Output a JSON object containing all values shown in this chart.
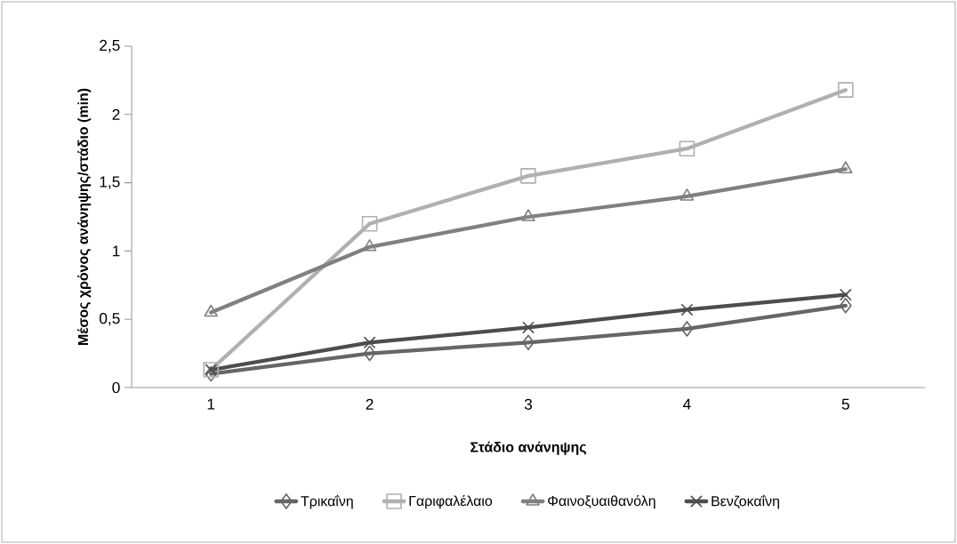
{
  "chart_data": {
    "type": "line",
    "xlabel": "Στάδιο ανάνηψης",
    "ylabel": "Μέσος χρόνος ανάνηψης/στάδιο (min)",
    "categories": [
      "1",
      "2",
      "3",
      "4",
      "5"
    ],
    "series": [
      {
        "name": "Τρικαΐνη",
        "color": "#666666",
        "marker": "diamond",
        "values": [
          0.1,
          0.25,
          0.33,
          0.43,
          0.6
        ]
      },
      {
        "name": "Γαριφαλέλαιο",
        "color": "#b0b0b0",
        "marker": "square",
        "values": [
          0.13,
          1.2,
          1.55,
          1.75,
          2.18
        ]
      },
      {
        "name": "Φαινοξυαιθανόλη",
        "color": "#808080",
        "marker": "triangle",
        "values": [
          0.55,
          1.03,
          1.25,
          1.4,
          1.6
        ]
      },
      {
        "name": "Βενζοκαΐνη",
        "color": "#4d4d4d",
        "marker": "cross",
        "values": [
          0.13,
          0.33,
          0.44,
          0.57,
          0.68
        ]
      }
    ],
    "ylim": [
      0,
      2.5
    ],
    "yticks": [
      0,
      {
        "value": 0.5,
        "label": "0,5"
      },
      1,
      {
        "value": 1.5,
        "label": "1,5"
      },
      2,
      {
        "value": 2.5,
        "label": "2,5"
      }
    ],
    "grid": false,
    "legend": "bottom",
    "line_style": "solid"
  }
}
